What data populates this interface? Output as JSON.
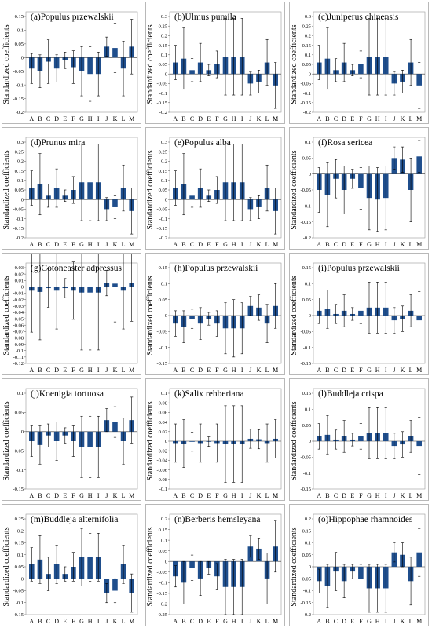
{
  "figure": {
    "ylabel": "Standardized coefficients",
    "categories": [
      "A",
      "B",
      "C",
      "D",
      "E",
      "F",
      "G",
      "H",
      "I",
      "J",
      "K",
      "L",
      "M"
    ],
    "bar_color": "#1f4e8c",
    "error_color": "#000000"
  },
  "chart_data": [
    {
      "type": "bar",
      "title": "(a)Populus przewalskii",
      "categories": [
        "A",
        "B",
        "C",
        "D",
        "E",
        "F",
        "G",
        "H",
        "I",
        "J",
        "K",
        "L",
        "M"
      ],
      "ylim": [
        -0.2,
        0.15
      ],
      "yticks": [
        -0.2,
        -0.15,
        -0.1,
        -0.05,
        0,
        0.05,
        0.1,
        0.15
      ],
      "ytick_labels": [
        "-0.2",
        "-0.15",
        "-0.1",
        "-0.05",
        "0",
        "0.05",
        "0.1",
        "0.15"
      ],
      "values": [
        -0.04,
        -0.05,
        -0.015,
        -0.04,
        -0.01,
        -0.035,
        -0.05,
        -0.06,
        -0.06,
        0.04,
        0.035,
        -0.04,
        0.04
      ],
      "errors": [
        0.055,
        0.06,
        0.08,
        0.05,
        0.03,
        0.06,
        0.09,
        0.1,
        0.08,
        0.035,
        0.09,
        0.1,
        0.1
      ]
    },
    {
      "type": "bar",
      "title": "(b)Ulmus pumila",
      "categories": [
        "A",
        "B",
        "C",
        "D",
        "E",
        "F",
        "G",
        "H",
        "I",
        "J",
        "K",
        "L",
        "M"
      ],
      "ylim": [
        -0.2,
        0.3
      ],
      "yticks": [
        -0.2,
        -0.15,
        -0.1,
        -0.05,
        0,
        0.05,
        0.1,
        0.15,
        0.2,
        0.25,
        0.3
      ],
      "ytick_labels": [
        "-0.2",
        "-0.15",
        "-0.1",
        "-0.05",
        "0",
        "0.05",
        "0.1",
        "0.15",
        "0.2",
        "0.25",
        "0.3"
      ],
      "values": [
        0.06,
        0.08,
        0.02,
        0.06,
        0.02,
        0.05,
        0.09,
        0.09,
        0.09,
        -0.05,
        -0.04,
        0.06,
        -0.06
      ],
      "errors": [
        0.09,
        0.16,
        0.06,
        0.1,
        0.03,
        0.07,
        0.2,
        0.2,
        0.2,
        0.06,
        0.06,
        0.12,
        0.12
      ]
    },
    {
      "type": "bar",
      "title": "(c)Juniperus chinensis",
      "categories": [
        "A",
        "B",
        "C",
        "D",
        "E",
        "F",
        "G",
        "H",
        "I",
        "J",
        "K",
        "L",
        "M"
      ],
      "ylim": [
        -0.2,
        0.3
      ],
      "yticks": [
        -0.2,
        -0.15,
        -0.1,
        -0.05,
        0,
        0.05,
        0.1,
        0.15,
        0.2,
        0.25,
        0.3
      ],
      "ytick_labels": [
        "-0.2",
        "-0.15",
        "-0.1",
        "-0.05",
        "0",
        "0.05",
        "0.1",
        "0.15",
        "0.2",
        "0.25",
        "0.3"
      ],
      "values": [
        0.06,
        0.08,
        0.02,
        0.06,
        0.02,
        0.05,
        0.09,
        0.09,
        0.09,
        -0.05,
        -0.04,
        0.06,
        -0.06
      ],
      "errors": [
        0.09,
        0.16,
        0.06,
        0.1,
        0.03,
        0.07,
        0.2,
        0.2,
        0.2,
        0.06,
        0.06,
        0.12,
        0.12
      ]
    },
    {
      "type": "bar",
      "title": "(d)Prunus mira",
      "categories": [
        "A",
        "B",
        "C",
        "D",
        "E",
        "F",
        "G",
        "H",
        "I",
        "J",
        "K",
        "L",
        "M"
      ],
      "ylim": [
        -0.2,
        0.3
      ],
      "yticks": [
        -0.2,
        -0.15,
        -0.1,
        -0.05,
        0,
        0.05,
        0.1,
        0.15,
        0.2,
        0.25,
        0.3
      ],
      "ytick_labels": [
        "-0.2",
        "-0.15",
        "-0.1",
        "-0.05",
        "0",
        "0.05",
        "0.1",
        "0.15",
        "0.2",
        "0.25",
        "0.3"
      ],
      "values": [
        0.06,
        0.08,
        0.02,
        0.06,
        0.02,
        0.05,
        0.09,
        0.09,
        0.09,
        -0.05,
        -0.04,
        0.06,
        -0.06
      ],
      "errors": [
        0.09,
        0.16,
        0.06,
        0.1,
        0.03,
        0.07,
        0.2,
        0.2,
        0.2,
        0.06,
        0.06,
        0.12,
        0.12
      ]
    },
    {
      "type": "bar",
      "title": "(e)Populus alba",
      "categories": [
        "A",
        "B",
        "C",
        "D",
        "E",
        "F",
        "G",
        "H",
        "I",
        "J",
        "K",
        "L",
        "M"
      ],
      "ylim": [
        -0.2,
        0.3
      ],
      "yticks": [
        -0.2,
        -0.15,
        -0.1,
        -0.05,
        0,
        0.05,
        0.1,
        0.15,
        0.2,
        0.25,
        0.3
      ],
      "ytick_labels": [
        "-0.2",
        "-0.15",
        "-0.1",
        "-0.05",
        "0",
        "0.05",
        "0.1",
        "0.15",
        "0.2",
        "0.25",
        "0.3"
      ],
      "values": [
        0.06,
        0.08,
        0.02,
        0.06,
        0.02,
        0.05,
        0.09,
        0.09,
        0.09,
        -0.05,
        -0.04,
        0.06,
        -0.06
      ],
      "errors": [
        0.09,
        0.16,
        0.06,
        0.1,
        0.03,
        0.07,
        0.2,
        0.2,
        0.2,
        0.06,
        0.06,
        0.12,
        0.12
      ]
    },
    {
      "type": "bar",
      "title": "(f)Rosa sericea",
      "categories": [
        "A",
        "B",
        "C",
        "D",
        "E",
        "F",
        "G",
        "H",
        "I",
        "J",
        "K",
        "L",
        "M"
      ],
      "ylim": [
        -0.2,
        0.1
      ],
      "yticks": [
        -0.2,
        -0.15,
        -0.1,
        -0.05,
        0,
        0.05,
        0.1
      ],
      "ytick_labels": [
        "-0.2",
        "-0.15",
        "-0.1",
        "-0.05",
        "0",
        "0.05",
        "0.1"
      ],
      "values": [
        -0.05,
        -0.065,
        -0.015,
        -0.05,
        -0.015,
        -0.045,
        -0.075,
        -0.08,
        -0.075,
        0.05,
        0.045,
        -0.05,
        0.055
      ],
      "errors": [
        0.07,
        0.1,
        0.06,
        0.075,
        0.03,
        0.065,
        0.1,
        0.1,
        0.1,
        0.035,
        0.04,
        0.1,
        0.05
      ]
    },
    {
      "type": "bar",
      "title": "(g)Cotoneaster adpressus",
      "categories": [
        "A",
        "B",
        "C",
        "D",
        "E",
        "F",
        "G",
        "H",
        "I",
        "J",
        "K",
        "L",
        "M"
      ],
      "ylim": [
        -0.12,
        0.03
      ],
      "yticks": [
        -0.12,
        -0.11,
        -0.1,
        -0.09,
        -0.08,
        -0.07,
        -0.06,
        -0.05,
        -0.04,
        -0.03,
        -0.02,
        -0.01,
        0,
        0.01,
        0.02,
        0.03
      ],
      "ytick_labels": [
        "-0.12",
        "-0.11",
        "-0.1",
        "-0.09",
        "-0.08",
        "-0.07",
        "-0.06",
        "-0.05",
        "-0.04",
        "-0.03",
        "-0.02",
        "-0.01",
        "0",
        "0.01",
        "0.02",
        "0.03"
      ],
      "values": [
        -0.006,
        -0.008,
        -0.002,
        -0.006,
        -0.002,
        -0.006,
        -0.009,
        -0.009,
        -0.009,
        0.006,
        0.005,
        -0.006,
        0.006
      ],
      "errors": [
        0.065,
        0.075,
        0.03,
        0.06,
        0.015,
        0.045,
        0.09,
        0.09,
        0.09,
        0.02,
        0.06,
        0.06,
        0.06
      ]
    },
    {
      "type": "bar",
      "title": "(h)Populus przewalskii",
      "categories": [
        "A",
        "B",
        "C",
        "D",
        "E",
        "F",
        "G",
        "H",
        "I",
        "J",
        "K",
        "L",
        "M"
      ],
      "ylim": [
        -0.15,
        0.15
      ],
      "yticks": [
        -0.15,
        -0.1,
        -0.05,
        0,
        0.05,
        0.1,
        0.15
      ],
      "ytick_labels": [
        "-0.15",
        "-0.1",
        "-0.05",
        "0",
        "0.05",
        "0.1",
        "0.15"
      ],
      "values": [
        -0.025,
        -0.035,
        -0.01,
        -0.025,
        -0.01,
        -0.025,
        -0.04,
        -0.04,
        -0.04,
        0.03,
        0.025,
        -0.025,
        0.03
      ],
      "errors": [
        0.04,
        0.05,
        0.03,
        0.05,
        0.02,
        0.04,
        0.08,
        0.09,
        0.08,
        0.03,
        0.04,
        0.06,
        0.07
      ]
    },
    {
      "type": "bar",
      "title": "(i)Populus przewalskii",
      "categories": [
        "A",
        "B",
        "C",
        "D",
        "E",
        "F",
        "G",
        "H",
        "I",
        "J",
        "K",
        "L",
        "M"
      ],
      "ylim": [
        -0.15,
        0.15
      ],
      "yticks": [
        -0.15,
        -0.1,
        -0.05,
        0,
        0.05,
        0.1,
        0.15
      ],
      "ytick_labels": [
        "-0.15",
        "-0.1",
        "-0.05",
        "0",
        "0.05",
        "0.1",
        "0.15"
      ],
      "values": [
        0.015,
        0.02,
        0.005,
        0.015,
        0.005,
        0.015,
        0.025,
        0.025,
        0.025,
        -0.015,
        -0.01,
        0.015,
        -0.015
      ],
      "errors": [
        0.04,
        0.06,
        0.03,
        0.05,
        0.02,
        0.04,
        0.08,
        0.08,
        0.08,
        0.04,
        0.04,
        0.05,
        0.09
      ]
    },
    {
      "type": "bar",
      "title": "(j)Koenigia tortuosa",
      "categories": [
        "A",
        "B",
        "C",
        "D",
        "E",
        "F",
        "G",
        "H",
        "I",
        "J",
        "K",
        "L",
        "M"
      ],
      "ylim": [
        -0.15,
        0.1
      ],
      "yticks": [
        -0.15,
        -0.1,
        -0.05,
        0,
        0.05,
        0.1
      ],
      "ytick_labels": [
        "-0.15",
        "-0.1",
        "-0.05",
        "0",
        "0.05",
        "0.1"
      ],
      "values": [
        -0.025,
        -0.035,
        -0.01,
        -0.025,
        -0.01,
        -0.025,
        -0.04,
        -0.04,
        -0.04,
        0.03,
        0.025,
        -0.025,
        0.03
      ],
      "errors": [
        0.04,
        0.05,
        0.03,
        0.05,
        0.02,
        0.04,
        0.08,
        0.08,
        0.08,
        0.03,
        0.04,
        0.06,
        0.06
      ]
    },
    {
      "type": "bar",
      "title": "(k)Salix rehberiana",
      "categories": [
        "A",
        "B",
        "C",
        "D",
        "E",
        "F",
        "G",
        "H",
        "I",
        "J",
        "K",
        "L",
        "M"
      ],
      "ylim": [
        -0.1,
        0.1
      ],
      "yticks": [
        -0.1,
        -0.08,
        -0.06,
        -0.04,
        -0.02,
        0,
        0.02,
        0.04,
        0.06,
        0.08,
        0.1
      ],
      "ytick_labels": [
        "-0.1",
        "-0.08",
        "-0.06",
        "-0.04",
        "-0.02",
        "0",
        "0.02",
        "0.04",
        "0.06",
        "0.08",
        "0.1"
      ],
      "values": [
        -0.004,
        -0.005,
        -0.001,
        -0.004,
        -0.001,
        -0.004,
        -0.006,
        -0.006,
        -0.006,
        0.005,
        0.004,
        -0.004,
        0.005
      ],
      "errors": [
        0.04,
        0.05,
        0.02,
        0.04,
        0.01,
        0.04,
        0.08,
        0.08,
        0.08,
        0.02,
        0.02,
        0.04,
        0.04
      ]
    },
    {
      "type": "bar",
      "title": "(l)Buddleja crispa",
      "categories": [
        "A",
        "B",
        "C",
        "D",
        "E",
        "F",
        "G",
        "H",
        "I",
        "J",
        "K",
        "L",
        "M"
      ],
      "ylim": [
        -0.15,
        0.15
      ],
      "yticks": [
        -0.15,
        -0.1,
        -0.05,
        0,
        0.05,
        0.1,
        0.15
      ],
      "ytick_labels": [
        "-0.15",
        "-0.1",
        "-0.05",
        "0",
        "0.05",
        "0.1",
        "0.15"
      ],
      "values": [
        0.015,
        0.02,
        0.005,
        0.015,
        0.005,
        0.015,
        0.025,
        0.025,
        0.025,
        -0.015,
        -0.01,
        0.015,
        -0.015
      ],
      "errors": [
        0.04,
        0.06,
        0.03,
        0.05,
        0.02,
        0.04,
        0.08,
        0.08,
        0.08,
        0.04,
        0.04,
        0.05,
        0.09
      ]
    },
    {
      "type": "bar",
      "title": "(m)Buddleja alternifolia",
      "categories": [
        "A",
        "B",
        "C",
        "D",
        "E",
        "F",
        "G",
        "H",
        "I",
        "J",
        "K",
        "L",
        "M"
      ],
      "ylim": [
        -0.15,
        0.25
      ],
      "yticks": [
        -0.15,
        -0.1,
        -0.05,
        0,
        0.05,
        0.1,
        0.15,
        0.2,
        0.25
      ],
      "ytick_labels": [
        "-0.15",
        "-0.1",
        "-0.05",
        "0",
        "0.05",
        "0.1",
        "0.15",
        "0.2",
        "0.25"
      ],
      "values": [
        0.06,
        0.08,
        0.02,
        0.06,
        0.02,
        0.05,
        0.09,
        0.09,
        0.09,
        -0.06,
        -0.05,
        0.06,
        -0.06
      ],
      "errors": [
        0.07,
        0.1,
        0.07,
        0.08,
        0.03,
        0.06,
        0.12,
        0.1,
        0.1,
        0.04,
        0.05,
        0.08,
        0.08
      ]
    },
    {
      "type": "bar",
      "title": "(n)Berberis hemsleyana",
      "categories": [
        "A",
        "B",
        "C",
        "D",
        "E",
        "F",
        "G",
        "H",
        "I",
        "J",
        "K",
        "L",
        "M"
      ],
      "ylim": [
        -0.25,
        0.2
      ],
      "yticks": [
        -0.25,
        -0.2,
        -0.15,
        -0.1,
        -0.05,
        0,
        0.05,
        0.1,
        0.15,
        0.2
      ],
      "ytick_labels": [
        "-0.25",
        "-0.2",
        "-0.15",
        "-0.1",
        "-0.05",
        "0",
        "0.05",
        "0.1",
        "0.15",
        "0.2"
      ],
      "values": [
        -0.07,
        -0.1,
        -0.03,
        -0.08,
        -0.03,
        -0.07,
        -0.12,
        -0.12,
        -0.12,
        0.07,
        0.06,
        -0.08,
        0.07
      ],
      "errors": [
        0.05,
        0.1,
        0.06,
        0.08,
        0.03,
        0.06,
        0.13,
        0.13,
        0.13,
        0.05,
        0.05,
        0.12,
        0.12
      ]
    },
    {
      "type": "bar",
      "title": "(o)Hippophae rhamnoides",
      "categories": [
        "A",
        "B",
        "C",
        "D",
        "E",
        "F",
        "G",
        "H",
        "I",
        "J",
        "K",
        "L",
        "M"
      ],
      "ylim": [
        -0.2,
        0.2
      ],
      "yticks": [
        -0.2,
        -0.15,
        -0.1,
        -0.05,
        0,
        0.05,
        0.1,
        0.15,
        0.2
      ],
      "ytick_labels": [
        "-0.2",
        "-0.15",
        "-0.1",
        "-0.05",
        "0",
        "0.05",
        "0.1",
        "0.15",
        "0.2"
      ],
      "values": [
        -0.06,
        -0.08,
        -0.02,
        -0.06,
        -0.02,
        -0.05,
        -0.09,
        -0.09,
        -0.09,
        0.06,
        0.05,
        -0.06,
        0.06
      ],
      "errors": [
        0.05,
        0.09,
        0.08,
        0.07,
        0.03,
        0.06,
        0.1,
        0.1,
        0.1,
        0.04,
        0.05,
        0.1,
        0.1
      ]
    }
  ]
}
